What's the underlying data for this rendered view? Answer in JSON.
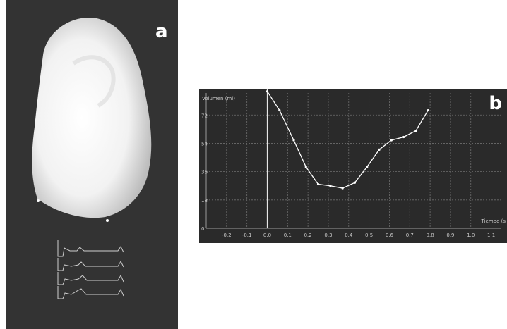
{
  "panel_a": {
    "label": "a"
  },
  "panel_b": {
    "label": "b"
  },
  "chart_data": {
    "type": "line",
    "title": "",
    "xlabel": "Tiempo (s",
    "ylabel": "Volumen (ml)",
    "x_ticks": [
      "-0.2",
      "-0.1",
      "0.0",
      "0.1",
      "0.2",
      "0.3",
      "0.4",
      "0.5",
      "0.6",
      "0.7",
      "0.8",
      "0.9",
      "1.0",
      "1.1"
    ],
    "y_ticks": [
      "0",
      "18",
      "36",
      "54",
      "72"
    ],
    "xlim": [
      -0.3,
      1.15
    ],
    "ylim": [
      0,
      86
    ],
    "grid": true,
    "series": [
      {
        "x": [
          0.0,
          0.06,
          0.13,
          0.19,
          0.25,
          0.31,
          0.37,
          0.43,
          0.49,
          0.55,
          0.61,
          0.67,
          0.73,
          0.79
        ],
        "y": [
          87,
          75,
          56,
          39,
          28,
          27,
          25.5,
          29,
          39,
          50,
          56,
          58,
          62,
          75
        ]
      }
    ],
    "color": "#ffffff"
  }
}
